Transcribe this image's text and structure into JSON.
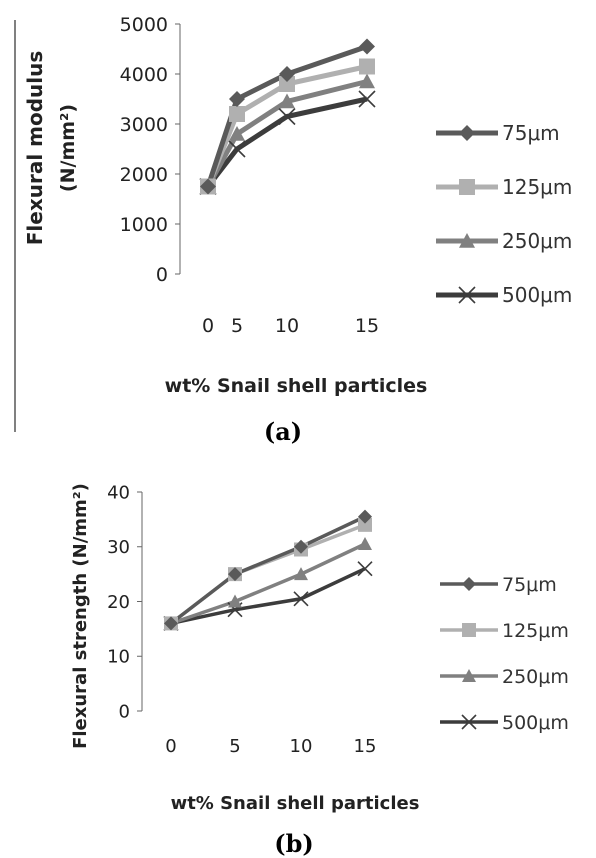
{
  "chart_data": [
    {
      "type": "line",
      "panel_label": "(a)",
      "xlabel": "wt% Snail shell particles",
      "ylabel_line1": "Flexural  modulus",
      "ylabel_line2": "(N/mm²)",
      "categories": [
        "0",
        "5",
        "10",
        "15"
      ],
      "yticks": [
        "0",
        "1000",
        "2000",
        "3000",
        "4000",
        "5000"
      ],
      "ylim": [
        0,
        5000
      ],
      "grid": false,
      "legend_position": "right",
      "series": [
        {
          "name": "75μm",
          "values": [
            1750,
            3500,
            4000,
            4550
          ],
          "color": "#5a5a5a",
          "marker": "diamond"
        },
        {
          "name": "125μm",
          "values": [
            1750,
            3200,
            3800,
            4150
          ],
          "color": "#b0b0b0",
          "marker": "square"
        },
        {
          "name": "250μm",
          "values": [
            1750,
            2800,
            3450,
            3850
          ],
          "color": "#808080",
          "marker": "triangle"
        },
        {
          "name": "500μm",
          "values": [
            1750,
            2500,
            3150,
            3500
          ],
          "color": "#3c3c3c",
          "marker": "x"
        }
      ]
    },
    {
      "type": "line",
      "panel_label": "(b)",
      "xlabel": "wt% Snail shell particles",
      "ylabel": "Flexural  strength (N/mm²)",
      "categories": [
        "0",
        "5",
        "10",
        "15"
      ],
      "yticks": [
        "0",
        "10",
        "20",
        "30",
        "40"
      ],
      "ylim": [
        0,
        40
      ],
      "grid": false,
      "legend_position": "right",
      "series": [
        {
          "name": "75μm",
          "values": [
            16,
            25,
            30,
            35.5
          ],
          "color": "#5a5a5a",
          "marker": "diamond"
        },
        {
          "name": "125μm",
          "values": [
            16,
            25,
            29.5,
            34
          ],
          "color": "#b0b0b0",
          "marker": "square"
        },
        {
          "name": "250μm",
          "values": [
            16,
            20,
            25,
            30.5
          ],
          "color": "#808080",
          "marker": "triangle"
        },
        {
          "name": "500μm",
          "values": [
            16,
            18.5,
            20.5,
            26
          ],
          "color": "#3c3c3c",
          "marker": "x"
        }
      ]
    }
  ]
}
